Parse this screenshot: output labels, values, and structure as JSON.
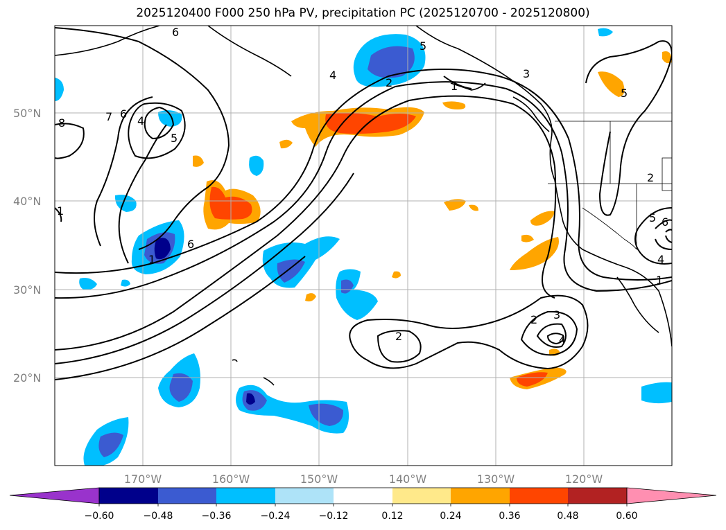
{
  "title": "2025120400 F000 250 hPa PV, precipitation PC (2025120700 - 2025120800)",
  "map": {
    "lat_labels": [
      "50°N",
      "40°N",
      "30°N",
      "20°N"
    ],
    "lon_labels": [
      "170°W",
      "160°W",
      "150°W",
      "140°W",
      "130°W",
      "120°W"
    ],
    "pv_contour_labels": [
      "6",
      "8",
      "7",
      "6",
      "4",
      "5",
      "1",
      "6",
      "4",
      "5",
      "2",
      "1",
      "3",
      "2",
      "3",
      "4",
      "2",
      "1",
      "4",
      "5",
      "6",
      "5",
      "1",
      "2"
    ]
  },
  "colorbar": {
    "ticks": [
      "−0.60",
      "−0.48",
      "−0.36",
      "−0.24",
      "−0.12",
      "0.12",
      "0.24",
      "0.36",
      "0.48",
      "0.60"
    ],
    "colors": [
      "#9933cc",
      "#00008b",
      "#3b5bd1",
      "#00bfff",
      "#aee3f8",
      "#ffffff",
      "#ffe98a",
      "#ffa500",
      "#ff4500",
      "#b22222",
      "#ff8fb1"
    ]
  }
}
